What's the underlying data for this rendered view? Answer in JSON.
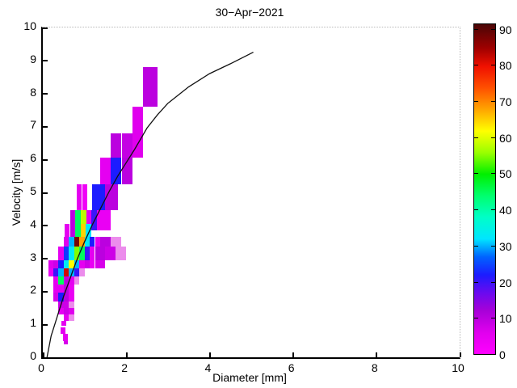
{
  "figure": {
    "title": "30−Apr−2021",
    "background_color": "#FFFFFF",
    "curve_color": "#111111"
  },
  "axes": {
    "xlabel": "Diameter [mm]",
    "ylabel": "Velocity [m/s]",
    "x_range": [
      0,
      10
    ],
    "y_range": [
      0,
      10
    ],
    "x_ticks": [
      0,
      2,
      4,
      6,
      8,
      10
    ],
    "y_ticks": [
      0,
      1,
      2,
      3,
      4,
      5,
      6,
      7,
      8,
      9,
      10
    ]
  },
  "colorbar": {
    "tick_values": [
      0,
      10,
      20,
      30,
      40,
      50,
      60,
      70,
      80,
      90
    ],
    "scale_max": 91.7,
    "pale_color": "#EC8CEC",
    "colormap_stops": [
      [
        0,
        "#FF00FF"
      ],
      [
        6,
        "#E000EE"
      ],
      [
        12,
        "#A801D8"
      ],
      [
        17,
        "#6A0AEF"
      ],
      [
        22,
        "#1C1CFF"
      ],
      [
        27,
        "#0063FF"
      ],
      [
        32,
        "#00E5FF"
      ],
      [
        38,
        "#00FFC8"
      ],
      [
        44,
        "#00FF6E"
      ],
      [
        50,
        "#00F000"
      ],
      [
        56,
        "#9AFF00"
      ],
      [
        62,
        "#FFFF00"
      ],
      [
        68,
        "#FFA500"
      ],
      [
        74,
        "#FF5000"
      ],
      [
        80,
        "#F01000"
      ],
      [
        85,
        "#A00000"
      ],
      [
        91.7,
        "#4A0606"
      ]
    ]
  },
  "chart_data": {
    "type": "heatmap",
    "title": "30−Apr−2021",
    "xlabel": "Diameter [mm]",
    "ylabel": "Velocity [m/s]",
    "xlim": [
      0,
      10
    ],
    "ylim": [
      0,
      10
    ],
    "colorbar_range": [
      0,
      90
    ],
    "legend": "none",
    "grid": "off",
    "cells": [
      [
        2.4,
        2.75,
        7.6,
        8.8,
        10
      ],
      [
        2.15,
        2.4,
        6.05,
        7.6,
        6
      ],
      [
        1.63,
        1.89,
        6.05,
        6.8,
        10
      ],
      [
        1.89,
        2.15,
        6.05,
        6.8,
        9
      ],
      [
        1.37,
        1.63,
        5.25,
        6.05,
        5
      ],
      [
        1.63,
        1.89,
        5.25,
        6.05,
        22
      ],
      [
        1.89,
        2.15,
        5.25,
        6.05,
        10
      ],
      [
        0.81,
        0.94,
        4.45,
        5.25,
        5
      ],
      [
        0.94,
        1.06,
        4.45,
        5.25,
        3
      ],
      [
        1.19,
        1.5,
        4.45,
        5.25,
        22
      ],
      [
        1.5,
        1.8,
        4.45,
        5.25,
        10
      ],
      [
        0.65,
        0.78,
        4.05,
        4.45,
        10
      ],
      [
        0.78,
        0.91,
        4.05,
        4.45,
        45
      ],
      [
        0.91,
        1.04,
        4.05,
        4.45,
        58
      ],
      [
        1.04,
        1.17,
        4.05,
        4.45,
        5
      ],
      [
        1.17,
        1.3,
        3.85,
        4.45,
        20
      ],
      [
        1.3,
        1.62,
        3.85,
        4.45,
        4
      ],
      [
        0.52,
        0.65,
        3.65,
        4.05,
        5
      ],
      [
        0.65,
        0.78,
        3.65,
        4.05,
        10
      ],
      [
        0.78,
        0.91,
        3.65,
        4.05,
        45
      ],
      [
        0.91,
        1.03,
        3.65,
        4.05,
        65
      ],
      [
        1.03,
        1.16,
        3.65,
        4.05,
        32
      ],
      [
        0.5,
        0.625,
        3.35,
        3.65,
        6
      ],
      [
        0.625,
        0.75,
        3.35,
        3.65,
        30
      ],
      [
        0.75,
        0.875,
        3.35,
        3.65,
        88
      ],
      [
        0.875,
        1.0,
        3.35,
        3.65,
        68
      ],
      [
        1.0,
        1.125,
        3.35,
        3.65,
        33
      ],
      [
        1.125,
        1.25,
        3.35,
        3.65,
        22
      ],
      [
        1.25,
        1.375,
        3.35,
        3.65,
        5
      ],
      [
        1.375,
        1.625,
        3.35,
        3.65,
        10
      ],
      [
        1.625,
        1.875,
        3.35,
        3.65,
        2,
        true
      ],
      [
        0.375,
        0.5,
        2.95,
        3.35,
        5
      ],
      [
        0.5,
        0.625,
        2.95,
        3.35,
        24
      ],
      [
        0.625,
        0.75,
        2.95,
        3.35,
        33
      ],
      [
        0.75,
        0.875,
        2.95,
        3.35,
        55
      ],
      [
        0.875,
        1.0,
        2.95,
        3.35,
        45
      ],
      [
        1.0,
        1.125,
        2.95,
        3.35,
        20
      ],
      [
        1.125,
        1.25,
        2.95,
        3.35,
        5
      ],
      [
        1.25,
        1.5,
        2.95,
        3.35,
        10
      ],
      [
        1.5,
        1.75,
        2.95,
        3.35,
        8
      ],
      [
        1.75,
        2.0,
        2.95,
        3.35,
        2,
        true
      ],
      [
        0.125,
        0.25,
        2.7,
        2.95,
        6
      ],
      [
        0.25,
        0.375,
        2.7,
        2.95,
        8
      ],
      [
        0.375,
        0.5,
        2.7,
        2.95,
        22
      ],
      [
        0.5,
        0.625,
        2.7,
        2.95,
        33
      ],
      [
        0.625,
        0.75,
        2.7,
        2.95,
        62
      ],
      [
        0.75,
        0.875,
        2.7,
        2.95,
        30
      ],
      [
        0.875,
        1.0,
        2.7,
        2.95,
        5
      ],
      [
        1.0,
        1.125,
        2.7,
        2.95,
        8
      ],
      [
        1.125,
        1.25,
        2.7,
        2.95,
        4
      ],
      [
        1.25,
        1.5,
        2.7,
        2.95,
        7
      ],
      [
        0.125,
        0.25,
        2.45,
        2.7,
        4
      ],
      [
        0.25,
        0.375,
        2.45,
        2.7,
        20
      ],
      [
        0.375,
        0.5,
        2.45,
        2.7,
        30
      ],
      [
        0.5,
        0.625,
        2.45,
        2.7,
        82
      ],
      [
        0.625,
        0.75,
        2.45,
        2.7,
        30
      ],
      [
        0.75,
        0.875,
        2.45,
        2.7,
        20
      ],
      [
        0.875,
        1.0,
        2.45,
        2.7,
        2,
        true
      ],
      [
        0.25,
        0.375,
        2.2,
        2.45,
        5
      ],
      [
        0.375,
        0.5,
        2.2,
        2.45,
        45
      ],
      [
        0.5,
        0.625,
        2.2,
        2.45,
        10
      ],
      [
        0.625,
        0.75,
        2.2,
        2.45,
        5
      ],
      [
        0.75,
        0.875,
        2.2,
        2.45,
        2,
        true
      ],
      [
        0.25,
        0.375,
        1.95,
        2.2,
        5
      ],
      [
        0.375,
        0.5,
        1.95,
        2.2,
        5
      ],
      [
        0.5,
        0.625,
        1.95,
        2.2,
        10
      ],
      [
        0.625,
        0.75,
        1.95,
        2.2,
        4
      ],
      [
        0.25,
        0.375,
        1.7,
        1.95,
        7
      ],
      [
        0.375,
        0.5,
        1.7,
        1.95,
        22
      ],
      [
        0.5,
        0.625,
        1.7,
        1.95,
        10
      ],
      [
        0.625,
        0.75,
        1.7,
        1.95,
        4
      ],
      [
        0.375,
        0.5,
        1.5,
        1.7,
        8
      ],
      [
        0.5,
        0.625,
        1.5,
        1.7,
        8
      ],
      [
        0.625,
        0.75,
        1.5,
        1.7,
        2,
        true
      ],
      [
        0.375,
        0.5,
        1.3,
        1.5,
        5
      ],
      [
        0.5,
        0.625,
        1.3,
        1.5,
        8
      ],
      [
        0.625,
        0.75,
        1.3,
        1.5,
        6
      ],
      [
        0.5,
        0.625,
        1.1,
        1.3,
        5
      ],
      [
        0.625,
        0.75,
        1.1,
        1.3,
        2,
        true
      ],
      [
        0.45,
        0.57,
        0.95,
        1.1,
        5
      ],
      [
        0.42,
        0.55,
        0.7,
        0.9,
        5
      ],
      [
        0.49,
        0.61,
        0.5,
        0.7,
        5
      ],
      [
        0.5,
        0.6,
        0.38,
        0.5,
        7
      ]
    ],
    "curve": {
      "name": "terminal-velocity-curve",
      "points": [
        [
          0.1,
          0
        ],
        [
          0.2,
          0.65
        ],
        [
          0.3,
          1.05
        ],
        [
          0.4,
          1.45
        ],
        [
          0.5,
          1.85
        ],
        [
          0.6,
          2.2
        ],
        [
          0.7,
          2.55
        ],
        [
          0.8,
          2.9
        ],
        [
          0.9,
          3.2
        ],
        [
          1.0,
          3.5
        ],
        [
          1.2,
          4.05
        ],
        [
          1.4,
          4.55
        ],
        [
          1.6,
          5.05
        ],
        [
          1.8,
          5.5
        ],
        [
          2.0,
          5.9
        ],
        [
          2.2,
          6.3
        ],
        [
          2.5,
          6.95
        ],
        [
          2.75,
          7.35
        ],
        [
          3.0,
          7.7
        ],
        [
          3.25,
          7.95
        ],
        [
          3.5,
          8.2
        ],
        [
          4.0,
          8.6
        ],
        [
          4.5,
          8.9
        ],
        [
          5.05,
          9.25
        ]
      ]
    }
  }
}
